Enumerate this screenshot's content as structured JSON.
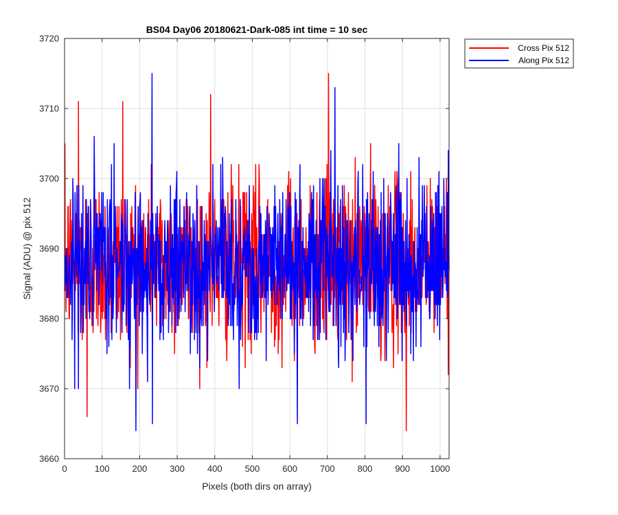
{
  "chart_data": {
    "type": "line",
    "title": "BS04 Day06 20180621-Dark-085 int time = 10 sec",
    "xlabel": "Pixels (both dirs on array)",
    "ylabel": "Signal (ADU) @ pix 512",
    "xlim": [
      0,
      1024
    ],
    "ylim": [
      3660,
      3720
    ],
    "xticks": [
      0,
      100,
      200,
      300,
      400,
      500,
      600,
      700,
      800,
      900,
      1000
    ],
    "yticks": [
      3660,
      3670,
      3680,
      3690,
      3700,
      3710,
      3720
    ],
    "grid": true,
    "legend_position": "outside-top-right",
    "series": [
      {
        "name": "Cross Pix 512",
        "color": "#ff0000",
        "x_start": 1,
        "x_step": 1,
        "mean": 3688,
        "std": 6,
        "peaks": [
          {
            "x": 37,
            "y": 3711
          },
          {
            "x": 155,
            "y": 3711
          },
          {
            "x": 389,
            "y": 3712
          },
          {
            "x": 703,
            "y": 3715
          },
          {
            "x": 60,
            "y": 3666
          },
          {
            "x": 910,
            "y": 3664
          }
        ]
      },
      {
        "name": "Along Pix 512",
        "color": "#0000ff",
        "x_start": 1,
        "x_step": 1,
        "mean": 3688,
        "std": 6,
        "peaks": [
          {
            "x": 233,
            "y": 3715
          },
          {
            "x": 720,
            "y": 3713
          },
          {
            "x": 190,
            "y": 3664
          },
          {
            "x": 234,
            "y": 3665
          },
          {
            "x": 620,
            "y": 3665
          },
          {
            "x": 803,
            "y": 3665
          }
        ]
      }
    ]
  }
}
